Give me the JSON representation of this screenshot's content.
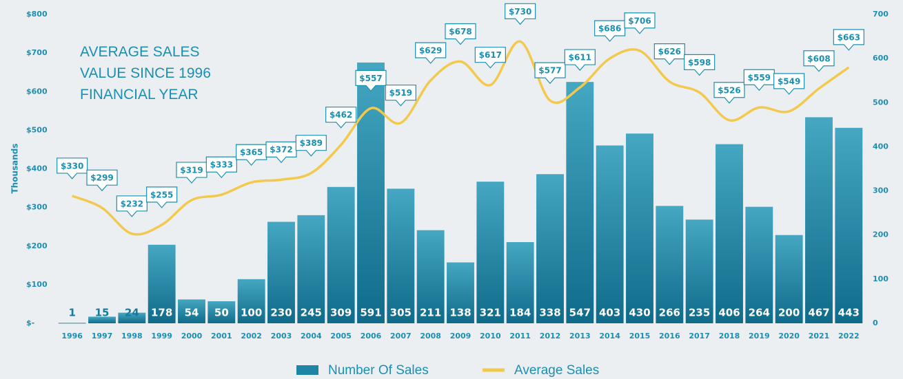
{
  "chart_data": {
    "type": "bar-line",
    "title": "AVERAGE SALES VALUE SINCE 1996 FINANCIAL YEAR",
    "ylabel": "Thousands",
    "categories": [
      "1996",
      "1997",
      "1998",
      "1999",
      "2000",
      "2001",
      "2002",
      "2003",
      "2004",
      "2005",
      "2006",
      "2007",
      "2008",
      "2009",
      "2010",
      "2011",
      "2012",
      "2013",
      "2014",
      "2015",
      "2016",
      "2017",
      "2018",
      "2019",
      "2020",
      "2021",
      "2022"
    ],
    "series": [
      {
        "name": "Number Of Sales",
        "type": "bar",
        "axis": "y2",
        "color": "#1f85a6",
        "values": [
          1,
          15,
          24,
          178,
          54,
          50,
          100,
          230,
          245,
          309,
          591,
          305,
          211,
          138,
          321,
          184,
          338,
          547,
          403,
          430,
          266,
          235,
          406,
          264,
          200,
          467,
          443
        ]
      },
      {
        "name": "Average Sales",
        "type": "line",
        "axis": "y",
        "color": "#f2c94c",
        "values": [
          330,
          299,
          232,
          255,
          319,
          333,
          365,
          372,
          389,
          462,
          557,
          519,
          629,
          678,
          617,
          730,
          577,
          611,
          686,
          706,
          626,
          598,
          526,
          559,
          549,
          608,
          663
        ],
        "value_labels": [
          "$330",
          "$299",
          "$232",
          "$255",
          "$319",
          "$333",
          "$365",
          "$372",
          "$389",
          "$462",
          "$557",
          "$519",
          "$629",
          "$678",
          "$617",
          "$730",
          "$577",
          "$611",
          "$686",
          "$706",
          "$626",
          "$598",
          "$526",
          "$559",
          "$549",
          "$608",
          "$663"
        ]
      }
    ],
    "ylim": [
      0,
      800
    ],
    "yticks": [
      {
        "value": 0,
        "label": "$-"
      },
      {
        "value": 100,
        "label": "$100"
      },
      {
        "value": 200,
        "label": "$200"
      },
      {
        "value": 300,
        "label": "$300"
      },
      {
        "value": 400,
        "label": "$400"
      },
      {
        "value": 500,
        "label": "$500"
      },
      {
        "value": 600,
        "label": "$600"
      },
      {
        "value": 700,
        "label": "$700"
      },
      {
        "value": 800,
        "label": "$800"
      }
    ],
    "y2lim": [
      0,
      700
    ],
    "y2ticks": [
      0,
      100,
      200,
      300,
      400,
      500,
      600,
      700
    ],
    "legend": "bottom"
  }
}
